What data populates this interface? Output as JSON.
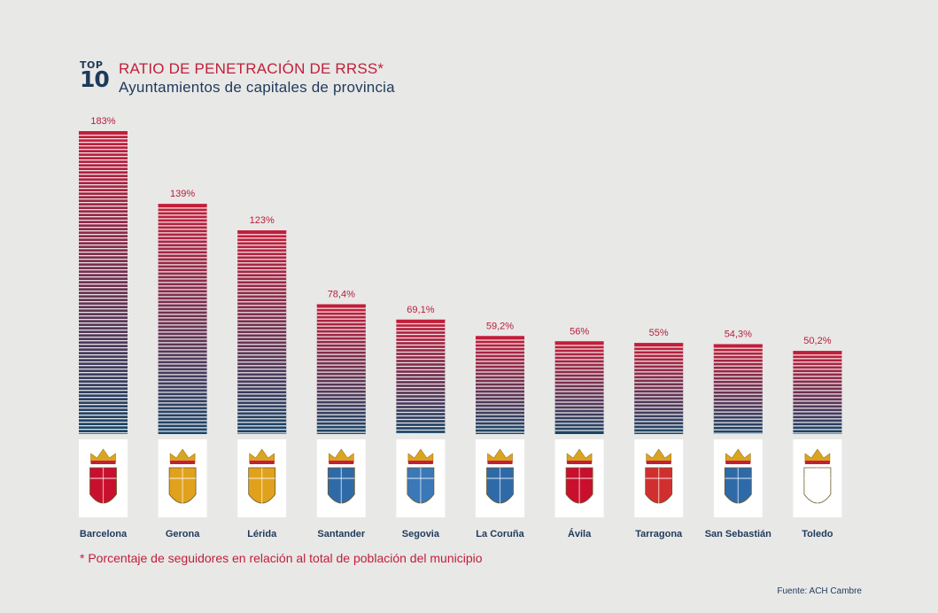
{
  "header": {
    "logo_top": "TOP",
    "logo_ten": "10",
    "title": "RATIO DE PENETRACIÓN DE RRSS*",
    "subtitle": "Ayuntamientos de capitales de provincia"
  },
  "footnote": "* Porcentaje de seguidores en relación al total de población del municipio",
  "source": "Fuente: ACH Cambre",
  "colors": {
    "bar_top": "#c41e3a",
    "bar_bottom": "#1a4566",
    "text_red": "#c0203a",
    "text_navy": "#1f3a5a",
    "background": "#e8e8e7"
  },
  "chart_data": {
    "type": "bar",
    "title": "RATIO DE PENETRACIÓN DE RRSS*",
    "subtitle": "Ayuntamientos de capitales de provincia",
    "categories": [
      "Barcelona",
      "Gerona",
      "Lérida",
      "Santander",
      "Segovia",
      "La Coruña",
      "Ávila",
      "Tarragona",
      "San Sebastián",
      "Toledo"
    ],
    "values": [
      183,
      139,
      123,
      78.4,
      69.1,
      59.2,
      56,
      55,
      54.3,
      50.2
    ],
    "value_labels": [
      "183%",
      "139%",
      "123%",
      "78,4%",
      "69,1%",
      "59,2%",
      "56%",
      "55%",
      "54,3%",
      "50,2%"
    ],
    "unit": "%",
    "ylim": [
      0,
      183
    ],
    "grid": false,
    "category_icons": [
      "barcelona-coat-of-arms-icon",
      "gerona-coat-of-arms-icon",
      "lerida-coat-of-arms-icon",
      "santander-coat-of-arms-icon",
      "segovia-coat-of-arms-icon",
      "la-coruna-coat-of-arms-icon",
      "avila-coat-of-arms-icon",
      "tarragona-coat-of-arms-icon",
      "san-sebastian-coat-of-arms-icon",
      "toledo-coat-of-arms-icon"
    ]
  }
}
